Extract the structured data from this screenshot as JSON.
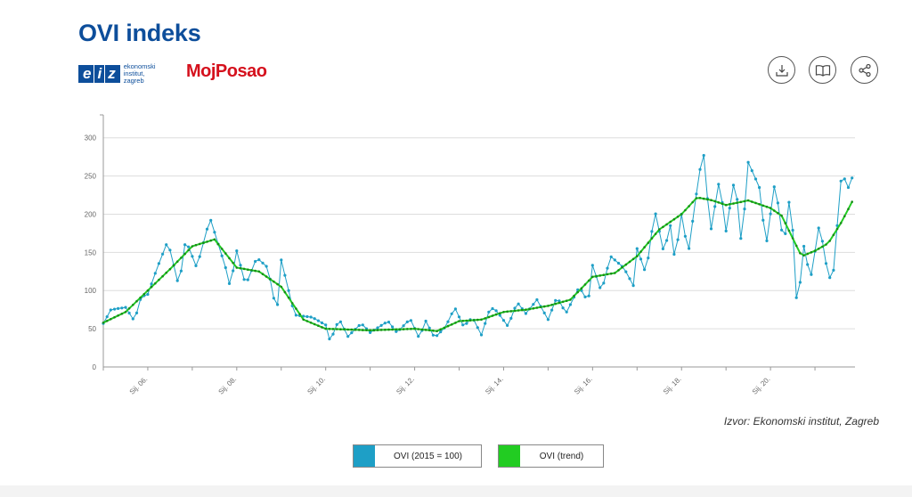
{
  "header": {
    "title": "OVI indeks"
  },
  "logos": {
    "eiz_letters": [
      "e",
      "i",
      "z"
    ],
    "eiz_text": [
      "ekonomski",
      "institut,",
      "zagreb"
    ],
    "mojposao": "MojPosao"
  },
  "toolbar": {
    "download_icon": "download-icon",
    "book_icon": "book-icon",
    "share_icon": "share-icon"
  },
  "source": "Izvor: Ekonomski institut, Zagreb",
  "colors": {
    "title": "#0d4e9b",
    "ovi": "#1e9fc6",
    "trend": "#22cc22",
    "grid": "#dddddd",
    "axis": "#999999"
  },
  "legend": [
    {
      "label": "OVI (2015 = 100)",
      "color": "#1e9fc6"
    },
    {
      "label": "OVI (trend)",
      "color": "#22cc22"
    }
  ],
  "chart_data": {
    "type": "line",
    "ylim": [
      0,
      330
    ],
    "yticks": [
      0,
      50,
      100,
      150,
      200,
      250,
      300
    ],
    "xticks": [
      "Sij. 06.",
      "Sij. 08.",
      "Sij. 10.",
      "Sij. 12.",
      "Sij. 14.",
      "Sij. 16.",
      "Sij. 18.",
      "Sij. 20."
    ],
    "x_start_year": 2005,
    "grid": true,
    "series": [
      {
        "name": "OVI (2015 = 100)",
        "anchors": [
          [
            2005.0,
            57
          ],
          [
            2005.17,
            75
          ],
          [
            2005.5,
            78
          ],
          [
            2005.7,
            60
          ],
          [
            2005.85,
            92
          ],
          [
            2006.0,
            95
          ],
          [
            2006.2,
            128
          ],
          [
            2006.45,
            165
          ],
          [
            2006.7,
            105
          ],
          [
            2006.85,
            167
          ],
          [
            2007.1,
            130
          ],
          [
            2007.4,
            195
          ],
          [
            2007.75,
            130
          ],
          [
            2007.85,
            105
          ],
          [
            2008.0,
            152
          ],
          [
            2008.2,
            107
          ],
          [
            2008.45,
            143
          ],
          [
            2008.7,
            130
          ],
          [
            2008.9,
            70
          ],
          [
            2009.0,
            140
          ],
          [
            2009.3,
            68
          ],
          [
            2009.7,
            65
          ],
          [
            2010.0,
            55
          ],
          [
            2010.1,
            33
          ],
          [
            2010.3,
            63
          ],
          [
            2010.5,
            40
          ],
          [
            2010.8,
            57
          ],
          [
            2011.0,
            45
          ],
          [
            2011.4,
            60
          ],
          [
            2011.6,
            45
          ],
          [
            2011.9,
            63
          ],
          [
            2012.1,
            38
          ],
          [
            2012.25,
            60
          ],
          [
            2012.45,
            38
          ],
          [
            2012.7,
            53
          ],
          [
            2012.9,
            78
          ],
          [
            2013.1,
            53
          ],
          [
            2013.3,
            65
          ],
          [
            2013.5,
            42
          ],
          [
            2013.7,
            78
          ],
          [
            2013.85,
            73
          ],
          [
            2014.1,
            53
          ],
          [
            2014.3,
            85
          ],
          [
            2014.5,
            70
          ],
          [
            2014.75,
            88
          ],
          [
            2015.0,
            62
          ],
          [
            2015.2,
            92
          ],
          [
            2015.4,
            70
          ],
          [
            2015.7,
            105
          ],
          [
            2015.9,
            85
          ],
          [
            2016.0,
            133
          ],
          [
            2016.2,
            98
          ],
          [
            2016.4,
            145
          ],
          [
            2016.7,
            130
          ],
          [
            2016.95,
            103
          ],
          [
            2017.0,
            155
          ],
          [
            2017.2,
            122
          ],
          [
            2017.4,
            205
          ],
          [
            2017.6,
            150
          ],
          [
            2017.75,
            185
          ],
          [
            2017.85,
            140
          ],
          [
            2018.0,
            200
          ],
          [
            2018.15,
            148
          ],
          [
            2018.4,
            255
          ],
          [
            2018.5,
            277
          ],
          [
            2018.65,
            175
          ],
          [
            2018.85,
            245
          ],
          [
            2019.0,
            178
          ],
          [
            2019.2,
            250
          ],
          [
            2019.35,
            158
          ],
          [
            2019.5,
            268
          ],
          [
            2019.75,
            235
          ],
          [
            2019.9,
            158
          ],
          [
            2020.1,
            243
          ],
          [
            2020.3,
            158
          ],
          [
            2020.45,
            232
          ],
          [
            2020.6,
            73
          ],
          [
            2020.75,
            158
          ],
          [
            2020.9,
            115
          ],
          [
            2021.1,
            188
          ],
          [
            2021.3,
            118
          ],
          [
            2021.4,
            115
          ],
          [
            2021.6,
            255
          ],
          [
            2021.75,
            235
          ],
          [
            2021.85,
            250
          ]
        ]
      },
      {
        "name": "OVI (trend)",
        "anchors": [
          [
            2005.0,
            58
          ],
          [
            2005.5,
            72
          ],
          [
            2006.0,
            100
          ],
          [
            2006.5,
            128
          ],
          [
            2007.0,
            158
          ],
          [
            2007.5,
            167
          ],
          [
            2008.0,
            130
          ],
          [
            2008.5,
            125
          ],
          [
            2009.0,
            105
          ],
          [
            2009.5,
            62
          ],
          [
            2010.0,
            50
          ],
          [
            2011.0,
            48
          ],
          [
            2012.0,
            50
          ],
          [
            2012.5,
            47
          ],
          [
            2013.0,
            60
          ],
          [
            2013.5,
            62
          ],
          [
            2014.0,
            72
          ],
          [
            2014.5,
            75
          ],
          [
            2015.0,
            80
          ],
          [
            2015.5,
            88
          ],
          [
            2016.0,
            118
          ],
          [
            2016.5,
            123
          ],
          [
            2017.0,
            145
          ],
          [
            2017.5,
            180
          ],
          [
            2018.0,
            200
          ],
          [
            2018.35,
            222
          ],
          [
            2018.7,
            218
          ],
          [
            2019.0,
            212
          ],
          [
            2019.5,
            218
          ],
          [
            2020.0,
            208
          ],
          [
            2020.25,
            198
          ],
          [
            2020.7,
            145
          ],
          [
            2021.0,
            152
          ],
          [
            2021.3,
            162
          ],
          [
            2021.6,
            190
          ],
          [
            2021.85,
            218
          ]
        ]
      }
    ]
  }
}
